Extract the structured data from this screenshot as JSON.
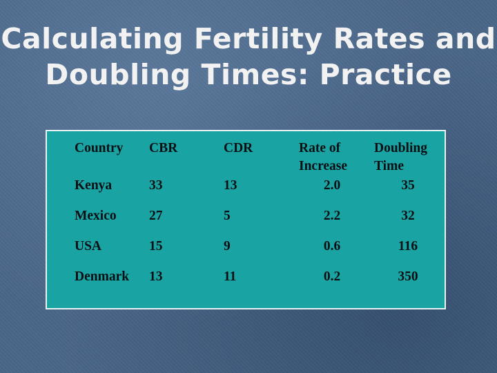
{
  "slide": {
    "title_line1": "Calculating Fertility Rates and",
    "title_line2": "Doubling Times: Practice"
  },
  "table": {
    "headers": {
      "country": "Country",
      "cbr": "CBR",
      "cdr": "CDR",
      "rate_line1": "Rate of",
      "rate_line2": "Increase",
      "doubling_line1": "Doubling",
      "doubling_line2": "Time"
    },
    "rows": [
      {
        "country": "Kenya",
        "cbr": "33",
        "cdr": "13",
        "rate": "2.0",
        "doubling": "35"
      },
      {
        "country": "Mexico",
        "cbr": "27",
        "cdr": "5",
        "rate": "2.2",
        "doubling": "32"
      },
      {
        "country": "USA",
        "cbr": "15",
        "cdr": "9",
        "rate": "0.6",
        "doubling": "116"
      },
      {
        "country": "Denmark",
        "cbr": "13",
        "cdr": "11",
        "rate": "0.2",
        "doubling": "350"
      }
    ]
  },
  "colors": {
    "background": "#4a6688",
    "table_fill": "#1aa3a3",
    "table_border": "#e8f4f4",
    "title_text": "#f2f2f2"
  }
}
